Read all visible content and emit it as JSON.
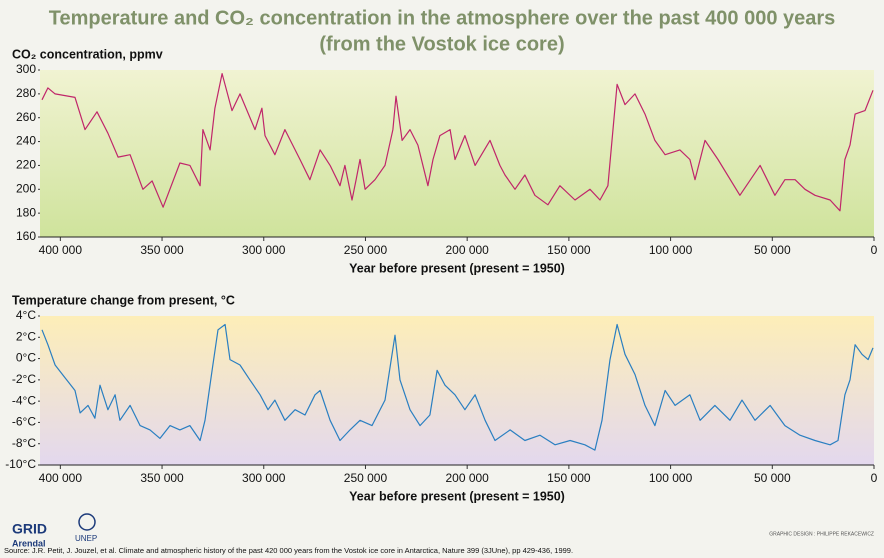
{
  "title": [
    "Temperature and CO₂ concentration in the atmosphere over the past 400 000 years",
    "(from the Vostok ice core)"
  ],
  "chart_data": [
    {
      "type": "line",
      "y_label": "CO₂ concentration, ppmv",
      "x_label": "Year before present (present = 1950)",
      "color": "#c0266a",
      "xlim": [
        410000,
        0
      ],
      "xticks": [
        {
          "value": 400000,
          "label": "400 000"
        },
        {
          "value": 350000,
          "label": "350 000"
        },
        {
          "value": 300000,
          "label": "300 000"
        },
        {
          "value": 250000,
          "label": "250 000"
        },
        {
          "value": 200000,
          "label": "200 000"
        },
        {
          "value": 150000,
          "label": "150 000"
        },
        {
          "value": 100000,
          "label": "100 000"
        },
        {
          "value": 50000,
          "label": "50 000"
        },
        0
      ],
      "ylim": [
        160,
        300
      ],
      "yticks": [
        160,
        180,
        200,
        220,
        240,
        260,
        280,
        300
      ],
      "x": [
        409000,
        406100,
        402600,
        392800,
        387900,
        382000,
        376600,
        371600,
        365700,
        359400,
        354900,
        349500,
        341200,
        336300,
        331300,
        329900,
        326400,
        324000,
        320500,
        315600,
        311700,
        304300,
        300900,
        299400,
        294500,
        289600,
        282200,
        277300,
        272300,
        267400,
        262500,
        260100,
        256600,
        254600,
        252700,
        250200,
        245300,
        240400,
        236500,
        235000,
        232000,
        228100,
        224200,
        219300,
        216800,
        213400,
        208400,
        206000,
        201100,
        196100,
        188800,
        183900,
        181400,
        176500,
        171600,
        166700,
        160300,
        154400,
        147000,
        139600,
        134700,
        130800,
        128800,
        126300,
        122400,
        117500,
        112600,
        107700,
        102700,
        95400,
        90500,
        88000,
        83100,
        76700,
        65900,
        56000,
        48700,
        43800,
        38800,
        33900,
        29000,
        21600,
        16700,
        14300,
        11800,
        9300,
        4400,
        500
      ],
      "values": [
        275,
        285,
        280,
        277,
        250,
        265,
        247,
        227,
        229,
        200,
        207,
        185,
        222,
        220,
        203,
        250,
        233,
        268,
        297,
        266,
        280,
        250,
        268,
        245,
        229,
        250,
        225,
        208,
        233,
        220,
        203,
        220,
        191,
        208,
        225,
        200,
        208,
        220,
        250,
        278,
        241,
        250,
        237,
        203,
        225,
        245,
        250,
        225,
        245,
        220,
        241,
        220,
        212,
        200,
        212,
        195,
        187,
        203,
        191,
        200,
        191,
        203,
        241,
        288,
        271,
        280,
        263,
        241,
        229,
        233,
        225,
        208,
        241,
        225,
        195,
        220,
        195,
        208,
        208,
        200,
        195,
        191,
        182,
        225,
        237,
        263,
        266,
        283
      ]
    },
    {
      "type": "line",
      "y_label": "Temperature change from present, °C",
      "x_label": "Year before present (present = 1950)",
      "color": "#2a7fc1",
      "xlim": [
        410000,
        0
      ],
      "xticks": [
        {
          "value": 400000,
          "label": "400 000"
        },
        {
          "value": 350000,
          "label": "350 000"
        },
        {
          "value": 300000,
          "label": "300 000"
        },
        {
          "value": 250000,
          "label": "250 000"
        },
        {
          "value": 200000,
          "label": "200 000"
        },
        {
          "value": 150000,
          "label": "150 000"
        },
        {
          "value": 100000,
          "label": "100 000"
        },
        {
          "value": 50000,
          "label": "50 000"
        },
        0
      ],
      "ylim": [
        -10,
        4
      ],
      "yticks": [
        {
          "value": -10,
          "label": "-10°C"
        },
        {
          "value": -8,
          "label": "-8°C"
        },
        {
          "value": -6,
          "label": "-6°C"
        },
        {
          "value": -4,
          "label": "-4°C"
        },
        {
          "value": -2,
          "label": "-2°C"
        },
        {
          "value": 0,
          "label": "0°C"
        },
        {
          "value": 2,
          "label": "2°C"
        },
        {
          "value": 4,
          "label": "4°C"
        }
      ],
      "x": [
        409000,
        406100,
        402600,
        397700,
        392800,
        390300,
        386400,
        383000,
        380500,
        376600,
        373100,
        370700,
        365700,
        360800,
        355900,
        351000,
        346100,
        341200,
        336300,
        331300,
        328900,
        325400,
        322500,
        319000,
        316600,
        311700,
        306800,
        301800,
        297900,
        294500,
        289600,
        284600,
        279700,
        274800,
        272300,
        267400,
        262500,
        257600,
        252700,
        246800,
        240400,
        235500,
        233000,
        228100,
        223200,
        218300,
        214800,
        210900,
        206000,
        201100,
        196100,
        191200,
        186300,
        178900,
        171600,
        164200,
        156800,
        149400,
        142100,
        137200,
        133700,
        129800,
        126300,
        122400,
        117500,
        112600,
        107700,
        102700,
        97800,
        90500,
        85500,
        78200,
        70800,
        64900,
        58500,
        51100,
        43800,
        36400,
        29000,
        21600,
        17700,
        14300,
        11800,
        9300,
        5900,
        2900,
        500
      ],
      "values": [
        2.7,
        1.3,
        -0.6,
        -1.8,
        -3.0,
        -5.1,
        -4.4,
        -5.6,
        -2.5,
        -4.8,
        -3.4,
        -5.8,
        -4.4,
        -6.3,
        -6.7,
        -7.5,
        -6.3,
        -6.7,
        -6.3,
        -7.7,
        -5.8,
        -1.1,
        2.7,
        3.2,
        -0.1,
        -0.6,
        -2.0,
        -3.4,
        -4.8,
        -3.9,
        -5.8,
        -4.8,
        -5.3,
        -3.4,
        -3.0,
        -5.8,
        -7.7,
        -6.7,
        -5.8,
        -6.3,
        -3.9,
        2.2,
        -2.0,
        -4.8,
        -6.3,
        -5.3,
        -1.1,
        -2.5,
        -3.4,
        -4.8,
        -3.4,
        -5.8,
        -7.7,
        -6.7,
        -7.7,
        -7.2,
        -8.1,
        -7.7,
        -8.1,
        -8.6,
        -5.8,
        -0.1,
        3.2,
        0.4,
        -1.5,
        -4.4,
        -6.3,
        -3.0,
        -4.4,
        -3.4,
        -5.8,
        -4.4,
        -5.8,
        -3.9,
        -5.8,
        -4.4,
        -6.3,
        -7.2,
        -7.7,
        -8.1,
        -7.7,
        -3.4,
        -2.0,
        1.3,
        0.4,
        -0.1,
        1.0
      ]
    }
  ],
  "logo": {
    "grid": "GRID",
    "arendal": "Arendal",
    "unep": "UNEP"
  },
  "credit": "GRAPHIC DESIGN : PHILIPPE REKACEWICZ",
  "source": "Source: J.R. Petit, J. Jouzel, et al. Climate and atmospheric history of the past 420 000 years from the Vostok ice core in Antarctica, Nature 399 (3JUne), pp 429-436, 1999."
}
